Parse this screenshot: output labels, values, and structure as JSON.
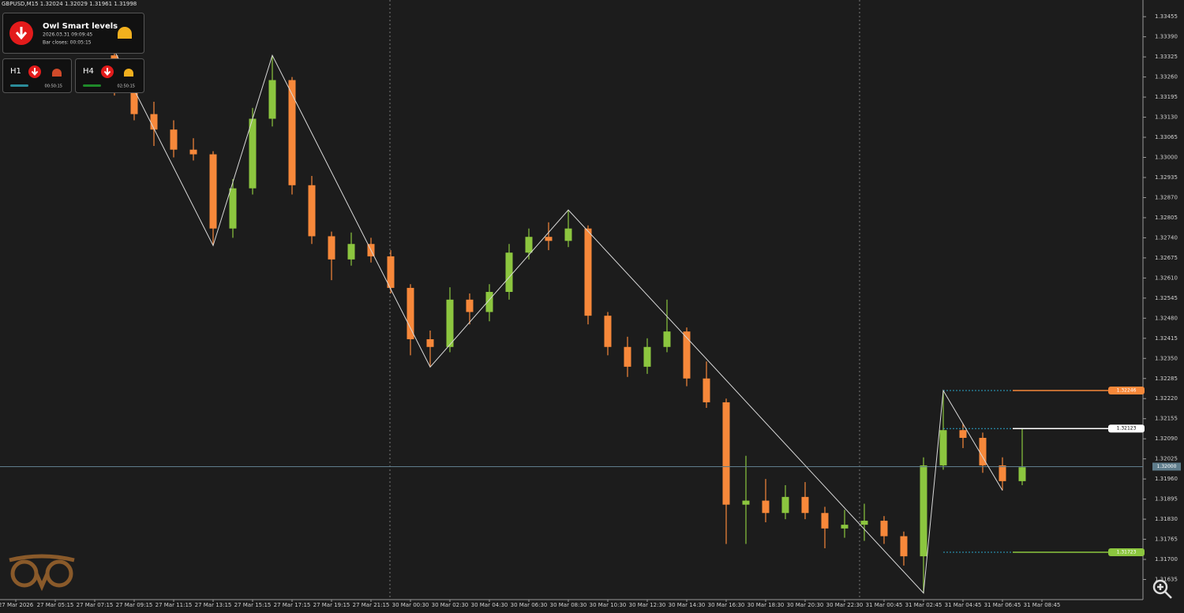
{
  "header": {
    "title": "GBPUSD,M15  1.32024 1.32029 1.31961 1.31998"
  },
  "panel": {
    "title": "Owl Smart levels",
    "time": "2026.03.31 09:09:45",
    "bar_close": "Bar closes: 00:05:15",
    "tiles": [
      {
        "label": "H1",
        "time": "00:50:15"
      },
      {
        "label": "H4",
        "time": "02:50:15"
      }
    ]
  },
  "chart_data": {
    "type": "candlestick",
    "bull_color": "#8cc63f",
    "bear_color": "#f7883a",
    "ylim": [
      1.3157,
      1.33509
    ],
    "yticks": [
      1.33455,
      {
        "value": 1.3339,
        "label": "1.33390"
      },
      1.33325,
      {
        "value": 1.3326,
        "label": "1.33260"
      },
      1.33195,
      {
        "value": 1.3313,
        "label": "1.33130"
      },
      1.33065,
      {
        "value": 1.33,
        "label": "1.33000"
      },
      1.32935,
      {
        "value": 1.3287,
        "label": "1.32870"
      },
      1.32805,
      {
        "value": 1.3274,
        "label": "1.32740"
      },
      1.32675,
      {
        "value": 1.3261,
        "label": "1.32610"
      },
      1.32545,
      {
        "value": 1.3248,
        "label": "1.32480"
      },
      1.32415,
      {
        "value": 1.3235,
        "label": "1.32350"
      },
      1.32285,
      {
        "value": 1.3222,
        "label": "1.32220"
      },
      1.32155,
      {
        "value": 1.3209,
        "label": "1.32090"
      },
      1.32025,
      {
        "value": 1.3196,
        "label": "1.31960"
      },
      1.31895,
      {
        "value": 1.3183,
        "label": "1.31830"
      },
      1.31765,
      {
        "value": 1.317,
        "label": "1.31700"
      },
      1.31635
    ],
    "xticks": [
      "27 Mar 2026",
      "27 Mar 05:15",
      "27 Mar 07:15",
      "27 Mar 09:15",
      "27 Mar 11:15",
      "27 Mar 13:15",
      "27 Mar 15:15",
      "27 Mar 17:15",
      "27 Mar 19:15",
      "27 Mar 21:15",
      "30 Mar 00:30",
      "30 Mar 02:30",
      "30 Mar 04:30",
      "30 Mar 06:30",
      "30 Mar 08:30",
      "30 Mar 10:30",
      "30 Mar 12:30",
      "30 Mar 14:30",
      "30 Mar 16:30",
      "30 Mar 18:30",
      "30 Mar 20:30",
      "30 Mar 22:30",
      "31 Mar 00:45",
      "31 Mar 02:45",
      "31 Mar 04:45",
      "31 Mar 06:45",
      "31 Mar 08:45"
    ],
    "ohlc": [
      [
        1.3333,
        1.33345,
        1.332,
        1.3323
      ],
      [
        1.3323,
        1.3326,
        1.3312,
        1.3314
      ],
      [
        1.3314,
        1.3318,
        1.33037,
        1.3309
      ],
      [
        1.3309,
        1.3312,
        1.33,
        1.33025
      ],
      [
        1.33025,
        1.33062,
        1.3299,
        1.3301
      ],
      [
        1.3301,
        1.3302,
        1.32715,
        1.3277
      ],
      [
        1.3277,
        1.3293,
        1.3274,
        1.329
      ],
      [
        1.329,
        1.3316,
        1.3288,
        1.33125
      ],
      [
        1.33125,
        1.3333,
        1.331,
        1.3325
      ],
      [
        1.3325,
        1.3326,
        1.3288,
        1.3291
      ],
      [
        1.3291,
        1.3294,
        1.3272,
        1.32745
      ],
      [
        1.32745,
        1.3276,
        1.32603,
        1.3267
      ],
      [
        1.3267,
        1.32757,
        1.3265,
        1.3272
      ],
      [
        1.3272,
        1.3274,
        1.3266,
        1.3268
      ],
      [
        1.3268,
        1.327,
        1.3256,
        1.32578
      ],
      [
        1.32578,
        1.3259,
        1.3236,
        1.32412
      ],
      [
        1.32412,
        1.3244,
        1.32322,
        1.32387
      ],
      [
        1.32387,
        1.3258,
        1.3237,
        1.3254
      ],
      [
        1.3254,
        1.3256,
        1.3246,
        1.325
      ],
      [
        1.325,
        1.3259,
        1.3247,
        1.32565
      ],
      [
        1.32565,
        1.3272,
        1.3254,
        1.32692
      ],
      [
        1.32692,
        1.3277,
        1.3267,
        1.32743
      ],
      [
        1.32743,
        1.3279,
        1.327,
        1.3273
      ],
      [
        1.3273,
        1.3283,
        1.3271,
        1.3277
      ],
      [
        1.3277,
        1.3278,
        1.3246,
        1.32488
      ],
      [
        1.32488,
        1.325,
        1.3236,
        1.32387
      ],
      [
        1.32387,
        1.3242,
        1.3229,
        1.32323
      ],
      [
        1.32323,
        1.32415,
        1.323,
        1.32387
      ],
      [
        1.32387,
        1.3254,
        1.3237,
        1.32437
      ],
      [
        1.32437,
        1.3245,
        1.3226,
        1.32285
      ],
      [
        1.32285,
        1.3234,
        1.3219,
        1.32208
      ],
      [
        1.32208,
        1.3222,
        1.3175,
        1.31877
      ],
      [
        1.31877,
        1.32035,
        1.3175,
        1.3189
      ],
      [
        1.3189,
        1.3196,
        1.3182,
        1.3185
      ],
      [
        1.3185,
        1.3194,
        1.3183,
        1.31902
      ],
      [
        1.31902,
        1.3195,
        1.3183,
        1.3185
      ],
      [
        1.3185,
        1.3187,
        1.31736,
        1.318
      ],
      [
        1.318,
        1.3186,
        1.3177,
        1.31812
      ],
      [
        1.31812,
        1.3188,
        1.3176,
        1.31825
      ],
      [
        1.31825,
        1.3184,
        1.3175,
        1.31775
      ],
      [
        1.31775,
        1.3179,
        1.3168,
        1.3171
      ],
      [
        1.3171,
        1.3203,
        1.31591,
        1.32004
      ],
      [
        1.32004,
        1.32246,
        1.3199,
        1.32118
      ],
      [
        1.32118,
        1.3214,
        1.3206,
        1.32093
      ],
      [
        1.32093,
        1.3211,
        1.3198,
        1.32004
      ],
      [
        1.32004,
        1.3203,
        1.31923,
        1.31953
      ],
      [
        1.31953,
        1.32123,
        1.3194,
        1.31998
      ]
    ],
    "zigzag": {
      "x": [
        0,
        5,
        8,
        16,
        23,
        41,
        42,
        45
      ],
      "values": [
        1.33345,
        1.32715,
        1.3333,
        1.32322,
        1.3283,
        1.31591,
        1.32246,
        1.31923
      ],
      "color": "#d8d8d8"
    },
    "price_lines": [
      {
        "value": 1.32246,
        "color": "#f7883a"
      },
      {
        "value": 1.32123,
        "color": "#ffffff"
      },
      {
        "value": 1.31723,
        "color": "#8cc63f"
      },
      {
        "value": 1.32,
        "label": "1.32000",
        "color": "#5f7d8c"
      }
    ]
  }
}
